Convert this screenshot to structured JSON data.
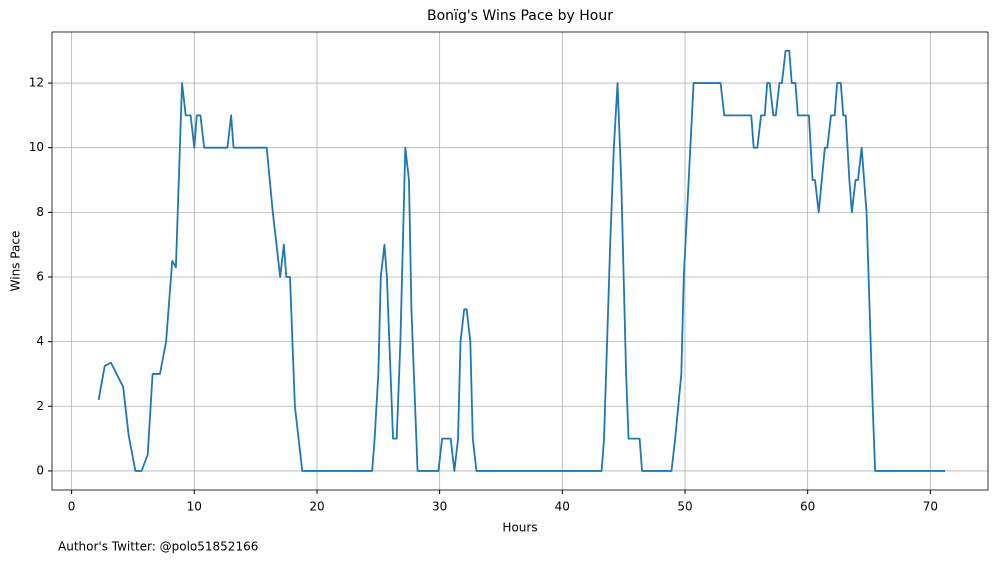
{
  "chart_data": {
    "type": "line",
    "title": "Bonïg's Wins Pace by Hour",
    "xlabel": "Hours",
    "ylabel": "Wins Pace",
    "annotation": "Author's Twitter: @polo51852166",
    "color": "#1f77b4",
    "x": [
      2.2,
      2.7,
      3.2,
      4.2,
      4.65,
      5.2,
      5.7,
      6.2,
      6.6,
      7.2,
      7.7,
      8.2,
      8.5,
      9.0,
      9.3,
      9.7,
      10.0,
      10.2,
      10.5,
      10.8,
      12.7,
      13.0,
      13.2,
      15.9,
      16.4,
      17.0,
      17.3,
      17.5,
      17.8,
      18.2,
      18.8,
      24.5,
      24.7,
      25.0,
      25.2,
      25.5,
      25.7,
      26.2,
      26.5,
      26.8,
      27.2,
      27.5,
      27.7,
      28.2,
      29.9,
      30.2,
      30.9,
      31.2,
      31.5,
      31.7,
      32.0,
      32.2,
      32.5,
      32.7,
      33.0,
      43.2,
      43.4,
      43.9,
      44.2,
      44.5,
      44.8,
      45.2,
      45.4,
      46.3,
      46.5,
      48.9,
      49.2,
      49.7,
      49.9,
      50.3,
      50.7,
      52.9,
      53.2,
      55.4,
      55.6,
      55.9,
      56.2,
      56.5,
      56.7,
      56.9,
      57.2,
      57.4,
      57.7,
      57.9,
      58.2,
      58.5,
      58.7,
      59.0,
      59.2,
      60.1,
      60.4,
      60.6,
      60.9,
      61.4,
      61.6,
      61.9,
      62.2,
      62.4,
      62.7,
      62.9,
      63.1,
      63.4,
      63.6,
      63.9,
      64.1,
      64.4,
      64.8,
      65.3,
      65.5,
      71.2
    ],
    "values": [
      2.2,
      3.25,
      3.35,
      2.6,
      1.1,
      0,
      0,
      0.5,
      3,
      3,
      4,
      6.5,
      6.3,
      12,
      11,
      11,
      10,
      11,
      11,
      10,
      10,
      11,
      10,
      10,
      8,
      6,
      7,
      6,
      6,
      2,
      0,
      0,
      1,
      3,
      6,
      7,
      6,
      1,
      1,
      4,
      10,
      9,
      5,
      0,
      0,
      1,
      1,
      0,
      1,
      4,
      5,
      5,
      4,
      1,
      0,
      0,
      1,
      7,
      10,
      12,
      9,
      3,
      1,
      1,
      0,
      0,
      1,
      3,
      6,
      9,
      12,
      12,
      11,
      11,
      10,
      10,
      11,
      11,
      12,
      12,
      11,
      11,
      12,
      12,
      13,
      13,
      12,
      12,
      11,
      11,
      9,
      9,
      8,
      10,
      10,
      11,
      11,
      12,
      12,
      11,
      11,
      9,
      8,
      9,
      9,
      10,
      8,
      2,
      0,
      0
    ],
    "xlim": [
      -1.6,
      74.7
    ],
    "ylim": [
      -0.59,
      13.58
    ],
    "xticks": [
      0,
      10,
      20,
      30,
      40,
      50,
      60,
      70
    ],
    "yticks": [
      0,
      2,
      4,
      6,
      8,
      10,
      12
    ],
    "grid": true
  }
}
